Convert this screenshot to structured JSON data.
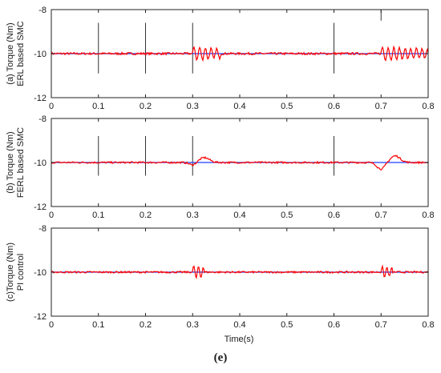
{
  "figure_caption": "(e)",
  "xlabel": "Time(s)",
  "colors": {
    "reference": "#1f3fff",
    "measured": "#ff0000",
    "spike": "#333333",
    "axis": "#222222"
  },
  "chart_data": [
    {
      "type": "line",
      "ylabel_lines": [
        "(a) Torque (Nm)",
        "ERL based SMC"
      ],
      "xlim": [
        0,
        0.8
      ],
      "ylim": [
        -12,
        -8
      ],
      "yticks": [
        -12,
        -10,
        -8
      ],
      "xticks": [
        0,
        0.1,
        0.2,
        0.3,
        0.4,
        0.5,
        0.6,
        0.7,
        0.8
      ],
      "xtick_labels": [
        "0",
        "0.1",
        "0.2",
        "0.3",
        "0.4",
        "0.5",
        "0.6",
        "0.7",
        "0.8"
      ],
      "ytick_labels": [
        "-12",
        "-10",
        "-8"
      ],
      "baseline": -10.0,
      "series": [
        {
          "color": "#1f3fff",
          "x": [
            0,
            0.8
          ],
          "y": [
            -10.0,
            -10.0
          ]
        },
        {
          "color": "#ff0000",
          "noise_amplitude": 0.05,
          "disturbances": [
            {
              "t0": 0.3,
              "duration": 0.06,
              "amplitude": 0.3,
              "period": 0.012
            },
            {
              "t0": 0.7,
              "duration": 0.1,
              "amplitude": 0.3,
              "period": 0.012
            }
          ]
        }
      ],
      "spikes": [
        {
          "x": 0.1,
          "y_from": -10.9,
          "y_to": -8.6
        },
        {
          "x": 0.2,
          "y_from": -10.9,
          "y_to": -8.6
        },
        {
          "x": 0.3,
          "y_from": -10.9,
          "y_to": -8.6
        },
        {
          "x": 0.6,
          "y_from": -10.9,
          "y_to": -8.6
        },
        {
          "x": 0.7,
          "y_from": -8.5,
          "y_to": -8.0
        }
      ]
    },
    {
      "type": "line",
      "ylabel_lines": [
        "(b) Torque (Nm)",
        "FERL based SMC"
      ],
      "xlim": [
        0,
        0.8
      ],
      "ylim": [
        -12,
        -8
      ],
      "yticks": [
        -12,
        -10,
        -8
      ],
      "xticks": [
        0,
        0.1,
        0.2,
        0.3,
        0.4,
        0.5,
        0.6,
        0.7,
        0.8
      ],
      "xtick_labels": [
        "0",
        "0.1",
        "0.2",
        "0.3",
        "0.4",
        "0.5",
        "0.6",
        "0.7",
        "0.8"
      ],
      "ytick_labels": [
        "-12",
        "-10",
        "-8"
      ],
      "baseline": -10.0,
      "series": [
        {
          "color": "#1f3fff",
          "x": [
            0,
            0.8
          ],
          "y": [
            -10.0,
            -10.0
          ]
        },
        {
          "color": "#ff0000",
          "noise_amplitude": 0.04,
          "bumps": [
            {
              "t": 0.3,
              "dy": -0.12,
              "width": 0.01
            },
            {
              "t": 0.325,
              "dy": 0.22,
              "width": 0.015
            },
            {
              "t": 0.7,
              "dy": -0.3,
              "width": 0.012
            },
            {
              "t": 0.73,
              "dy": 0.3,
              "width": 0.015
            }
          ]
        }
      ],
      "spikes": [
        {
          "x": 0.1,
          "y_from": -10.6,
          "y_to": -8.8
        },
        {
          "x": 0.2,
          "y_from": -10.6,
          "y_to": -8.8
        },
        {
          "x": 0.3,
          "y_from": -10.6,
          "y_to": -8.8
        },
        {
          "x": 0.6,
          "y_from": -10.6,
          "y_to": -8.8
        }
      ]
    },
    {
      "type": "line",
      "ylabel_lines": [
        "(c)Torque (Nm)",
        "PI control"
      ],
      "xlim": [
        0,
        0.8
      ],
      "ylim": [
        -12,
        -8
      ],
      "yticks": [
        -12,
        -10,
        -8
      ],
      "xticks": [
        0,
        0.1,
        0.2,
        0.3,
        0.4,
        0.5,
        0.6,
        0.7,
        0.8
      ],
      "xtick_labels": [
        "0",
        "0.1",
        "0.2",
        "0.3",
        "0.4",
        "0.5",
        "0.6",
        "0.7",
        "0.8"
      ],
      "ytick_labels": [
        "-12",
        "-10",
        "-8"
      ],
      "baseline": -10.0,
      "series": [
        {
          "color": "#1f3fff",
          "x": [
            0,
            0.8
          ],
          "y": [
            -10.0,
            -10.0
          ]
        },
        {
          "color": "#ff0000",
          "noise_amplitude": 0.04,
          "disturbances": [
            {
              "t0": 0.3,
              "duration": 0.025,
              "amplitude": 0.3,
              "period": 0.01
            },
            {
              "t0": 0.7,
              "duration": 0.025,
              "amplitude": 0.25,
              "period": 0.01
            }
          ]
        }
      ],
      "spikes": []
    }
  ]
}
